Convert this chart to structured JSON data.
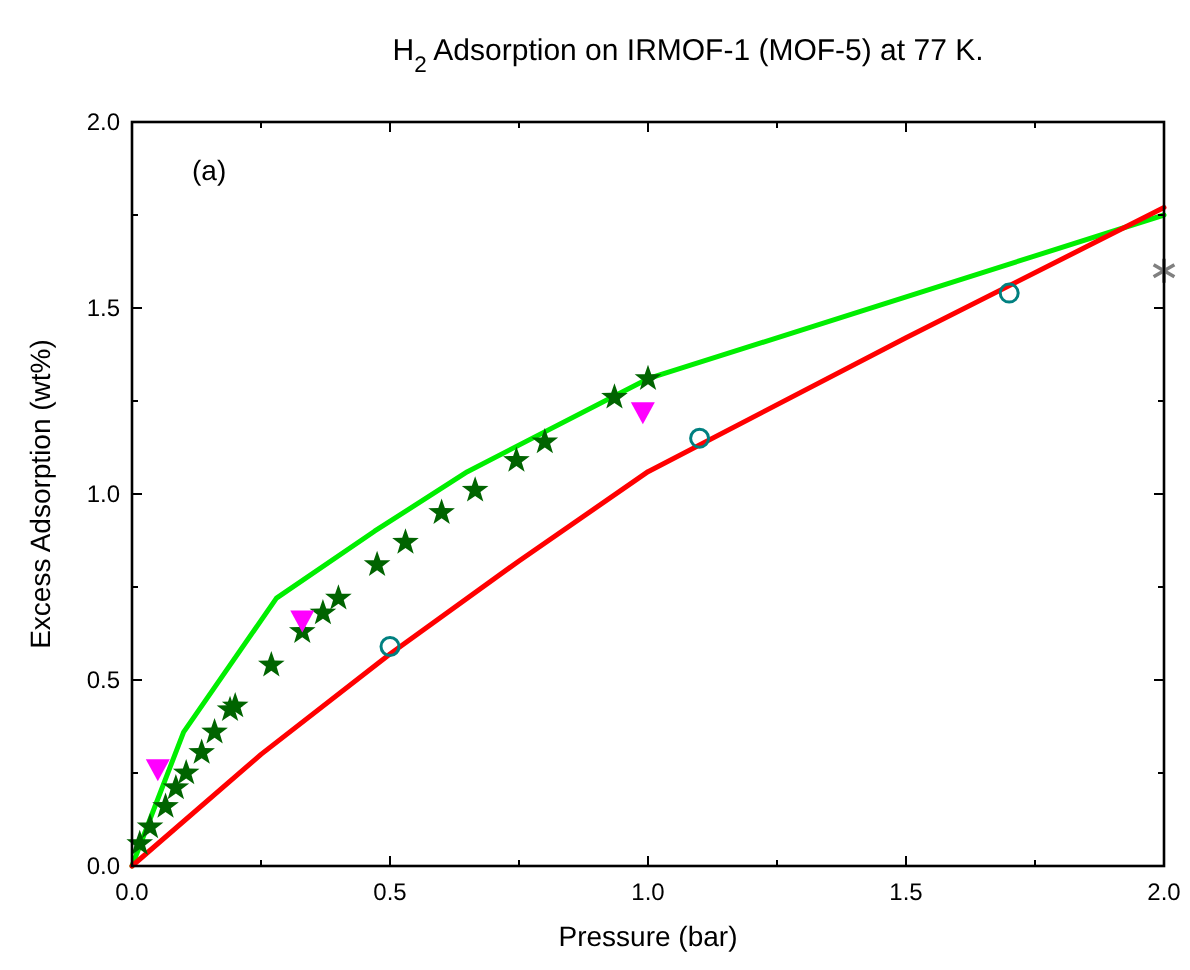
{
  "chart_data": {
    "type": "line",
    "title": "H$_{2}$ Adsorption on IRMOF-1 (MOF-5) at 77 K.",
    "xlabel": "Pressure (bar)",
    "ylabel": "Excess Adsorption (wt%)",
    "annotations": [
      "(a)"
    ],
    "xlim": [
      0,
      2
    ],
    "ylim": [
      0,
      2
    ],
    "xticks": [
      {
        "value": 0,
        "label": "0.0"
      },
      {
        "value": 0.5,
        "label": "0.5"
      },
      {
        "value": 1,
        "label": "1.0"
      },
      {
        "value": 1.5,
        "label": "1.5"
      },
      {
        "value": 2,
        "label": "2.0"
      }
    ],
    "yticks": [
      {
        "value": 0,
        "label": "0.0"
      },
      {
        "value": 0.5,
        "label": "0.5"
      },
      {
        "value": 1,
        "label": "1.0"
      },
      {
        "value": 1.5,
        "label": "1.5"
      },
      {
        "value": 2,
        "label": "2.0"
      }
    ],
    "series": [
      {
        "color": "#00ee00",
        "marker": "none",
        "x": [
          0,
          0.1,
          0.28,
          0.47,
          0.65,
          1.0,
          2.0
        ],
        "values": [
          0,
          0.36,
          0.72,
          0.9,
          1.06,
          1.31,
          1.75
        ]
      },
      {
        "color": "#ff0000",
        "marker": "none",
        "x": [
          0,
          0.25,
          0.5,
          0.75,
          1.0,
          1.5,
          2.0
        ],
        "values": [
          0,
          0.3,
          0.57,
          0.82,
          1.06,
          1.42,
          1.77
        ]
      },
      {
        "type": "scatter",
        "color": "#006400",
        "marker": "star",
        "x": [
          0.015,
          0.035,
          0.065,
          0.085,
          0.105,
          0.135,
          0.16,
          0.19,
          0.2,
          0.27,
          0.33,
          0.37,
          0.4,
          0.475,
          0.53,
          0.6,
          0.665,
          0.745,
          0.8,
          0.935,
          1.0
        ],
        "values": [
          0.06,
          0.105,
          0.16,
          0.21,
          0.25,
          0.305,
          0.36,
          0.42,
          0.43,
          0.54,
          0.63,
          0.68,
          0.72,
          0.81,
          0.87,
          0.95,
          1.01,
          1.09,
          1.14,
          1.26,
          1.31
        ]
      },
      {
        "type": "scatter",
        "color": "#008080",
        "marker": "circle",
        "x": [
          0.5,
          1.1,
          1.7
        ],
        "values": [
          0.59,
          1.15,
          1.54
        ]
      },
      {
        "type": "scatter",
        "color": "#ff00ff",
        "marker": "triangle",
        "x": [
          0.05,
          0.33,
          0.99
        ],
        "values": [
          0.26,
          0.66,
          1.22
        ]
      },
      {
        "type": "scatter",
        "color": "#808080",
        "marker": "cross",
        "x": [
          2.0
        ],
        "values": [
          1.6
        ]
      }
    ]
  }
}
